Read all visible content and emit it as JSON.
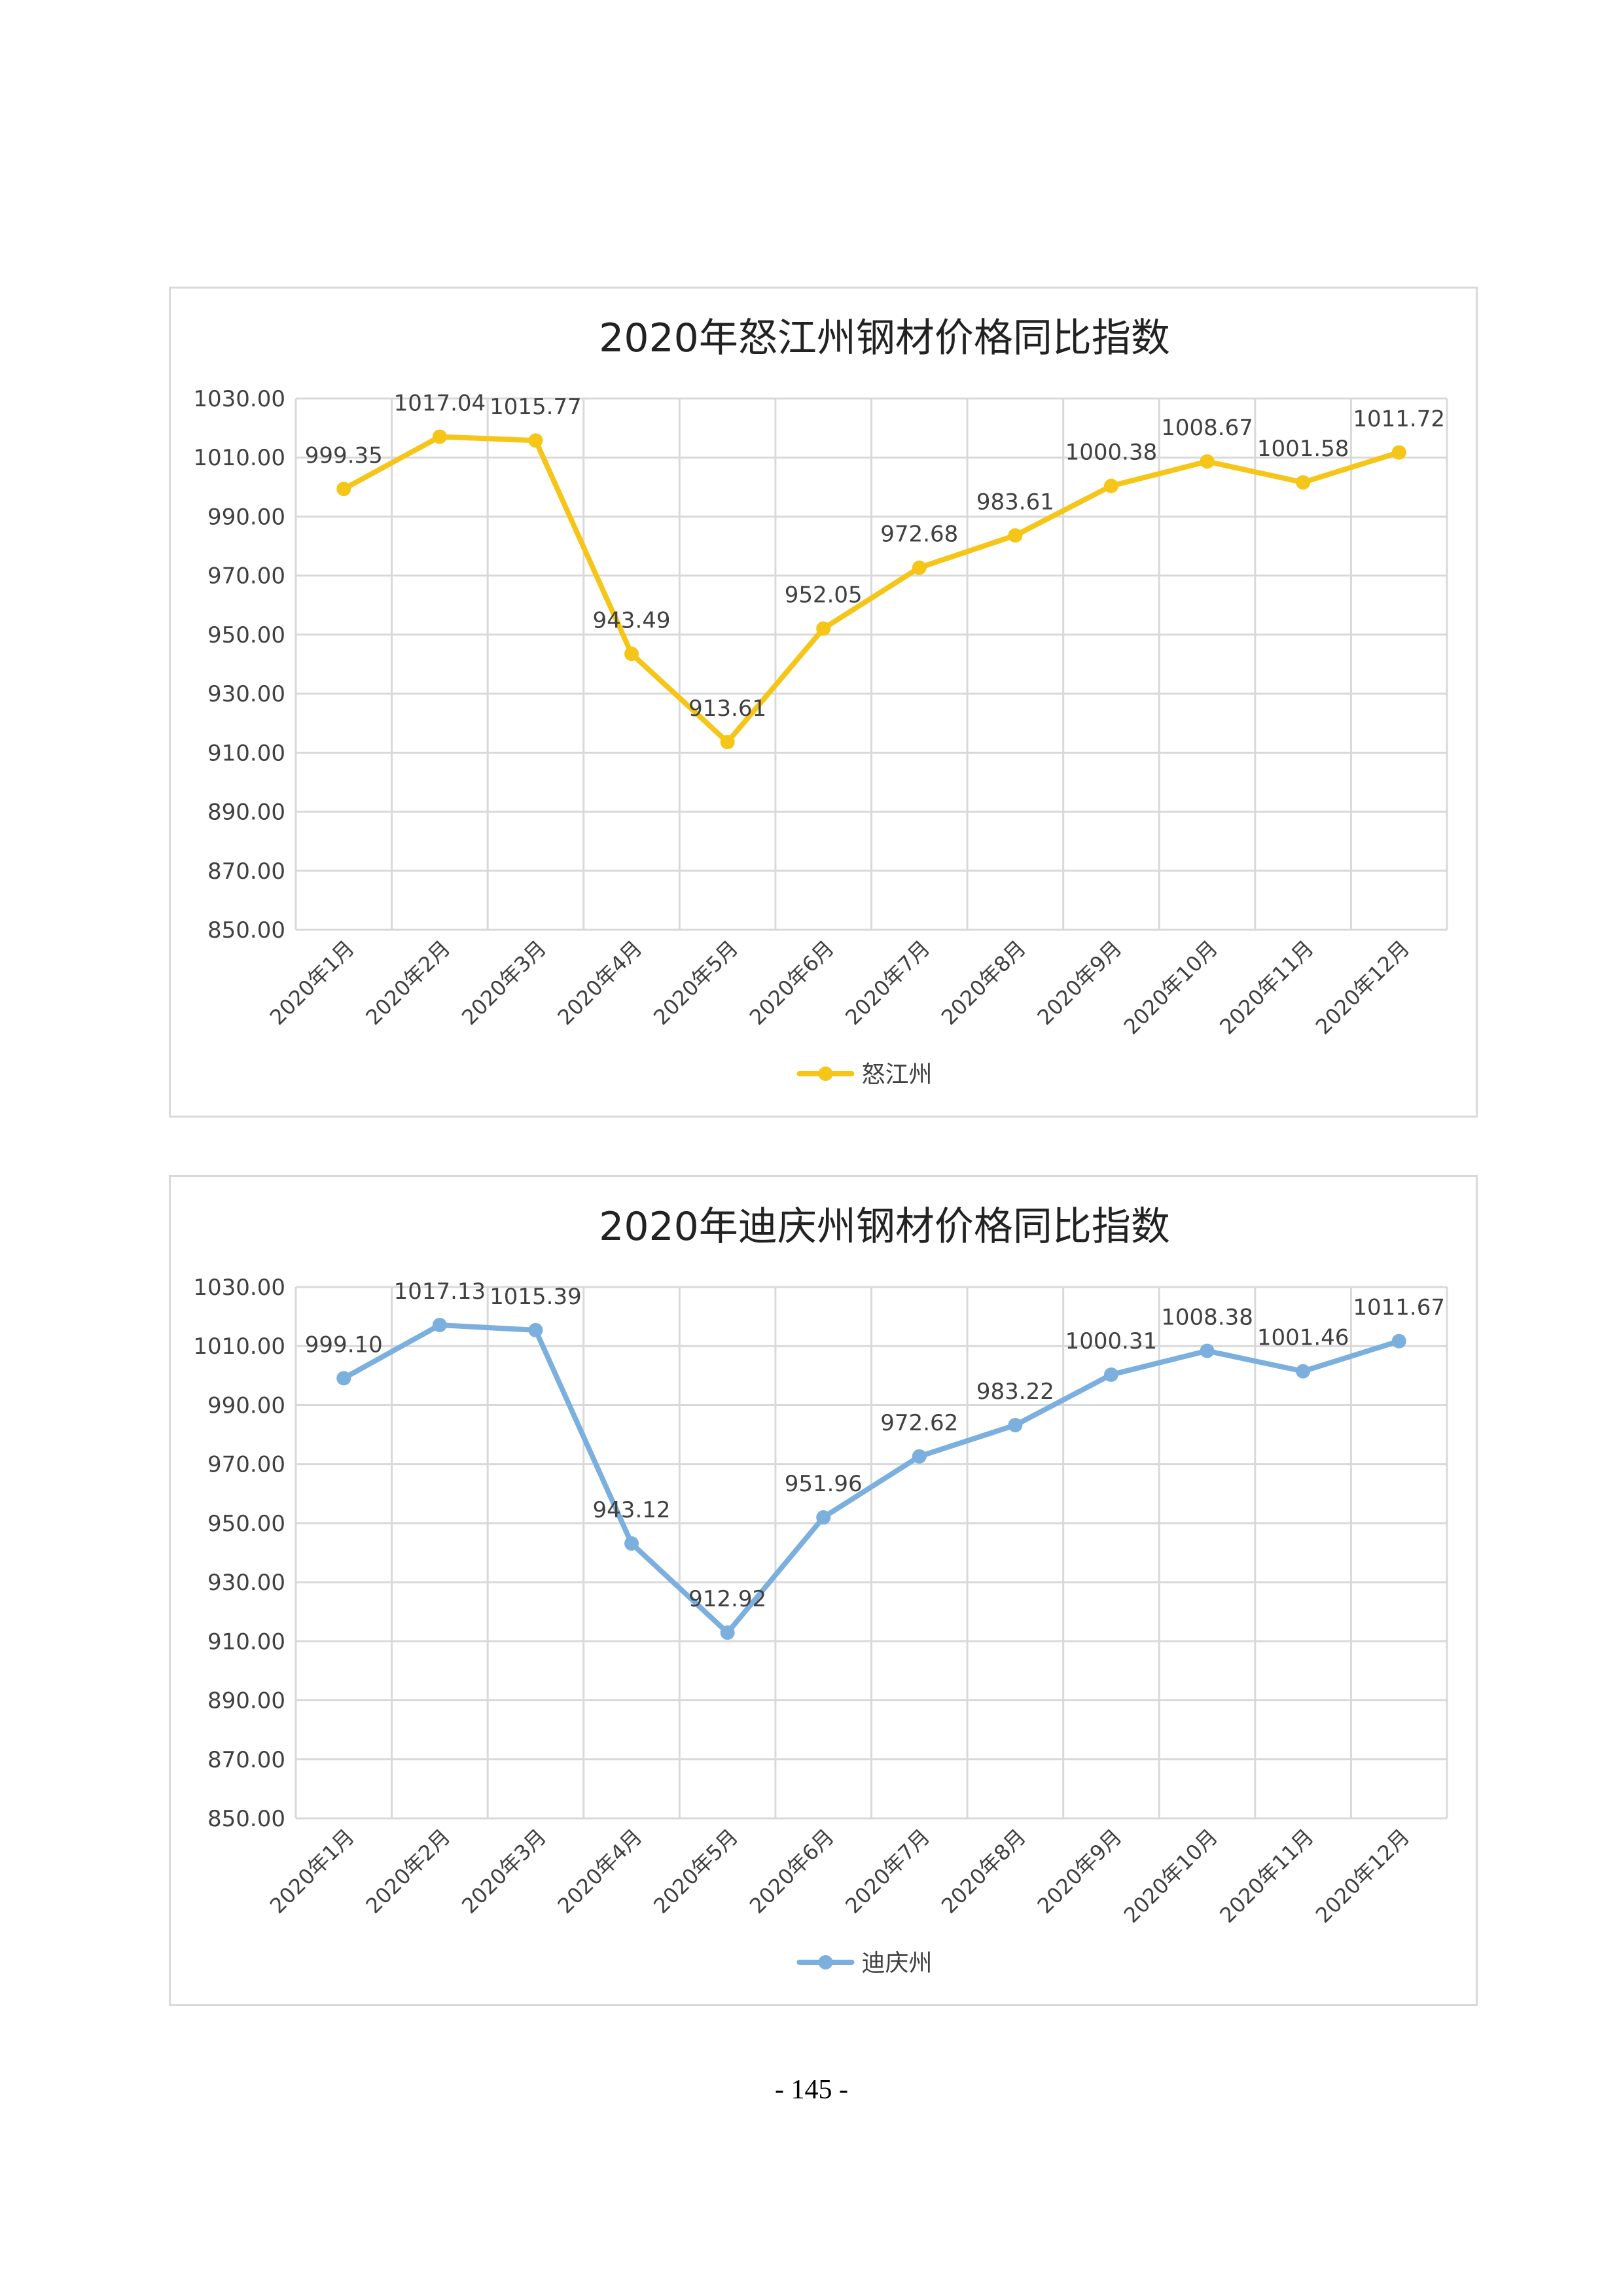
{
  "page": {
    "number": "- 145 -"
  },
  "chart_data": [
    {
      "type": "line",
      "title": "2020年怒江州钢材价格同比指数",
      "xlabel": "",
      "ylabel": "",
      "categories": [
        "2020年1月",
        "2020年2月",
        "2020年3月",
        "2020年4月",
        "2020年5月",
        "2020年6月",
        "2020年7月",
        "2020年8月",
        "2020年9月",
        "2020年10月",
        "2020年11月",
        "2020年12月"
      ],
      "series": [
        {
          "name": "怒江州",
          "values": [
            999.35,
            1017.04,
            1015.77,
            943.49,
            913.61,
            952.05,
            972.68,
            983.61,
            1000.38,
            1008.67,
            1001.58,
            1011.72
          ],
          "labels": [
            "999.35",
            "1017.04",
            "1015.77",
            "943.49",
            "913.61",
            "952.05",
            "972.68",
            "983.61",
            "1000.38",
            "1008.67",
            "1001.58",
            "1011.72"
          ],
          "color": "#F5C518"
        }
      ],
      "ylim": [
        850,
        1030
      ],
      "yticks": [
        "850.00",
        "870.00",
        "890.00",
        "910.00",
        "930.00",
        "950.00",
        "970.00",
        "990.00",
        "1010.00",
        "1030.00"
      ],
      "grid": true,
      "legend": "bottom-center"
    },
    {
      "type": "line",
      "title": "2020年迪庆州钢材价格同比指数",
      "xlabel": "",
      "ylabel": "",
      "categories": [
        "2020年1月",
        "2020年2月",
        "2020年3月",
        "2020年4月",
        "2020年5月",
        "2020年6月",
        "2020年7月",
        "2020年8月",
        "2020年9月",
        "2020年10月",
        "2020年11月",
        "2020年12月"
      ],
      "series": [
        {
          "name": "迪庆州",
          "values": [
            999.1,
            1017.13,
            1015.39,
            943.12,
            912.92,
            951.96,
            972.62,
            983.22,
            1000.31,
            1008.38,
            1001.46,
            1011.67
          ],
          "labels": [
            "999.10",
            "1017.13",
            "1015.39",
            "943.12",
            "912.92",
            "951.96",
            "972.62",
            "983.22",
            "1000.31",
            "1008.38",
            "1001.46",
            "1011.67"
          ],
          "color": "#7BAFDE"
        }
      ],
      "ylim": [
        850,
        1030
      ],
      "yticks": [
        "850.00",
        "870.00",
        "890.00",
        "910.00",
        "930.00",
        "950.00",
        "970.00",
        "990.00",
        "1010.00",
        "1030.00"
      ],
      "grid": true,
      "legend": "bottom-center"
    }
  ]
}
